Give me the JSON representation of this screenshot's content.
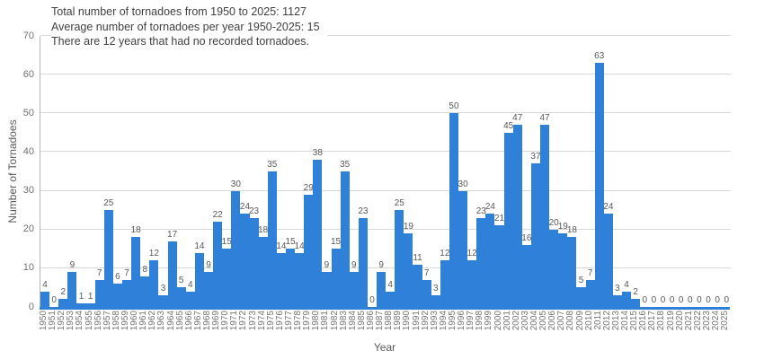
{
  "header": {
    "line1": "Total number of tornadoes from 1950 to 2025: 1127",
    "line2": "Average number of tornadoes per year 1950-2025: 15",
    "line3": "There are 12 years that had no recorded tornadoes."
  },
  "chart_data": {
    "type": "bar",
    "title": "",
    "xlabel": "Year",
    "ylabel": "Number of Tornadoes",
    "ylim": [
      0,
      70
    ],
    "yticks": [
      0,
      10,
      20,
      30,
      40,
      50,
      60,
      70
    ],
    "grid": true,
    "legend": false,
    "bar_color": "#2e80d9",
    "value_labels_shown": true,
    "categories": [
      "1950",
      "1951",
      "1952",
      "1953",
      "1954",
      "1955",
      "1956",
      "1957",
      "1958",
      "1959",
      "1960",
      "1961",
      "1962",
      "1963",
      "1964",
      "1965",
      "1966",
      "1967",
      "1968",
      "1969",
      "1970",
      "1971",
      "1972",
      "1973",
      "1974",
      "1975",
      "1976",
      "1977",
      "1978",
      "1979",
      "1980",
      "1981",
      "1982",
      "1983",
      "1984",
      "1985",
      "1986",
      "1987",
      "1988",
      "1989",
      "1990",
      "1991",
      "1992",
      "1993",
      "1994",
      "1995",
      "1996",
      "1997",
      "1998",
      "1999",
      "2000",
      "2001",
      "2002",
      "2003",
      "2004",
      "2005",
      "2006",
      "2007",
      "2008",
      "2009",
      "2010",
      "2011",
      "2012",
      "2013",
      "2014",
      "2015",
      "2016",
      "2017",
      "2018",
      "2019",
      "2020",
      "2021",
      "2022",
      "2023",
      "2024",
      "2025"
    ],
    "values": [
      4,
      0,
      2,
      9,
      1,
      1,
      7,
      25,
      6,
      7,
      18,
      8,
      12,
      3,
      17,
      5,
      4,
      14,
      9,
      22,
      15,
      30,
      24,
      23,
      18,
      35,
      14,
      15,
      14,
      29,
      38,
      9,
      15,
      35,
      9,
      23,
      0,
      9,
      4,
      25,
      19,
      11,
      7,
      3,
      12,
      50,
      30,
      12,
      23,
      24,
      21,
      45,
      47,
      16,
      37,
      47,
      20,
      19,
      18,
      5,
      7,
      63,
      24,
      3,
      4,
      2,
      0,
      0,
      0,
      0,
      0,
      0,
      0,
      0,
      0,
      0
    ]
  }
}
